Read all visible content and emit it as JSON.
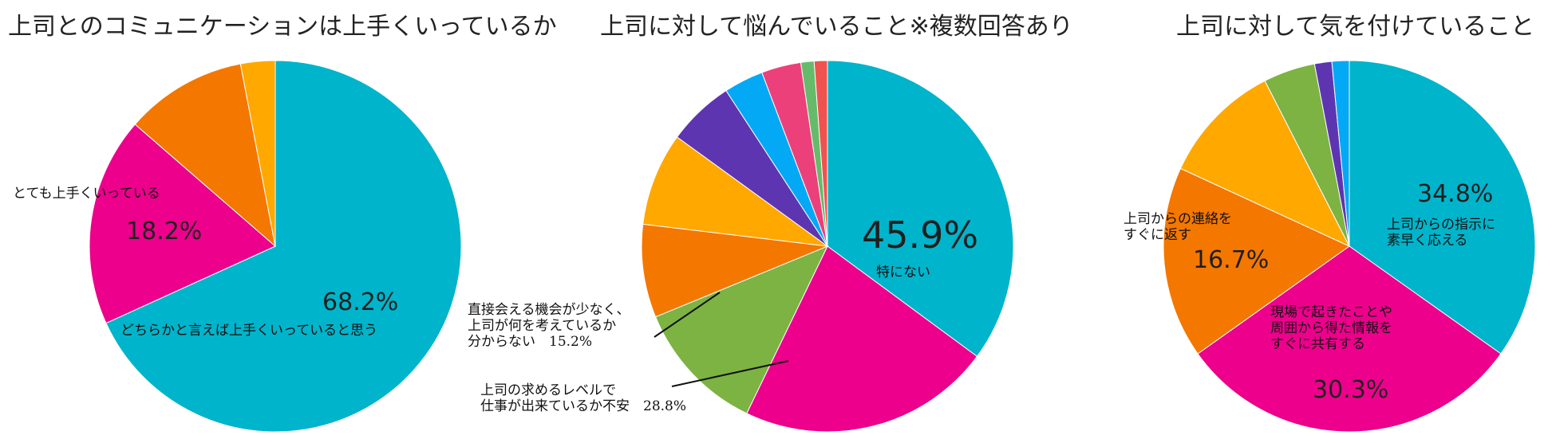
{
  "colors": {
    "cyan": "#00B4CB",
    "magenta": "#EC008C",
    "orange": "#F47700",
    "amber": "#FFA800",
    "green": "#7CB342",
    "purple": "#5E35B1",
    "blue": "#03A9F4",
    "pink": "#EC407A",
    "lightgreen": "#66BB6A",
    "red": "#EF5350"
  },
  "chart_data": [
    {
      "type": "pie",
      "title": "上司とのコミュニケーションは上手くいっているか",
      "slices": [
        {
          "label": "どちらかと言えば上手くいっていると思う",
          "value": 68.2,
          "value_label": "68.2%",
          "color": "#00B4CB"
        },
        {
          "label": "とても上手くいっている",
          "value": 18.2,
          "value_label": "18.2%",
          "color": "#EC008C"
        },
        {
          "label": "",
          "value": 10.6,
          "color": "#F47700"
        },
        {
          "label": "",
          "value": 3.0,
          "color": "#FFA800"
        }
      ]
    },
    {
      "type": "pie",
      "title": "上司に対して悩んでいること※複数回答あり",
      "slices": [
        {
          "label": "特にない",
          "value": 45.9,
          "value_label": "45.9%",
          "color": "#00B4CB"
        },
        {
          "label": "上司の求めるレベルで\n仕事が出来ているか不安　28.8%",
          "value": 28.8,
          "color": "#EC008C"
        },
        {
          "label": "直接会える機会が少なく、\n上司が何を考えているか\n分からない　15.2%",
          "value": 15.2,
          "color": "#7CB342"
        },
        {
          "label": "",
          "value": 10.6,
          "color": "#F47700"
        },
        {
          "label": "",
          "value": 10.6,
          "color": "#FFA800"
        },
        {
          "label": "",
          "value": 7.6,
          "color": "#5E35B1"
        },
        {
          "label": "",
          "value": 4.5,
          "color": "#03A9F4"
        },
        {
          "label": "",
          "value": 4.5,
          "color": "#EC407A"
        },
        {
          "label": "",
          "value": 1.5,
          "color": "#66BB6A"
        },
        {
          "label": "",
          "value": 1.5,
          "color": "#EF5350"
        }
      ]
    },
    {
      "type": "pie",
      "title": "上司に対して気を付けていること",
      "slices": [
        {
          "label": "上司からの指示に\n素早く応える",
          "value": 34.8,
          "value_label": "34.8%",
          "color": "#00B4CB"
        },
        {
          "label": "現場で起きたことや\n周囲から得た情報を\nすぐに共有する",
          "value": 30.3,
          "value_label": "30.3%",
          "color": "#EC008C"
        },
        {
          "label": "上司からの連絡を\nすぐに返す",
          "value": 16.7,
          "value_label": "16.7%",
          "color": "#F47700"
        },
        {
          "label": "",
          "value": 10.6,
          "color": "#FFA800"
        },
        {
          "label": "",
          "value": 4.5,
          "color": "#7CB342"
        },
        {
          "label": "",
          "value": 1.5,
          "color": "#5E35B1"
        },
        {
          "label": "",
          "value": 1.5,
          "color": "#03A9F4"
        }
      ]
    }
  ]
}
